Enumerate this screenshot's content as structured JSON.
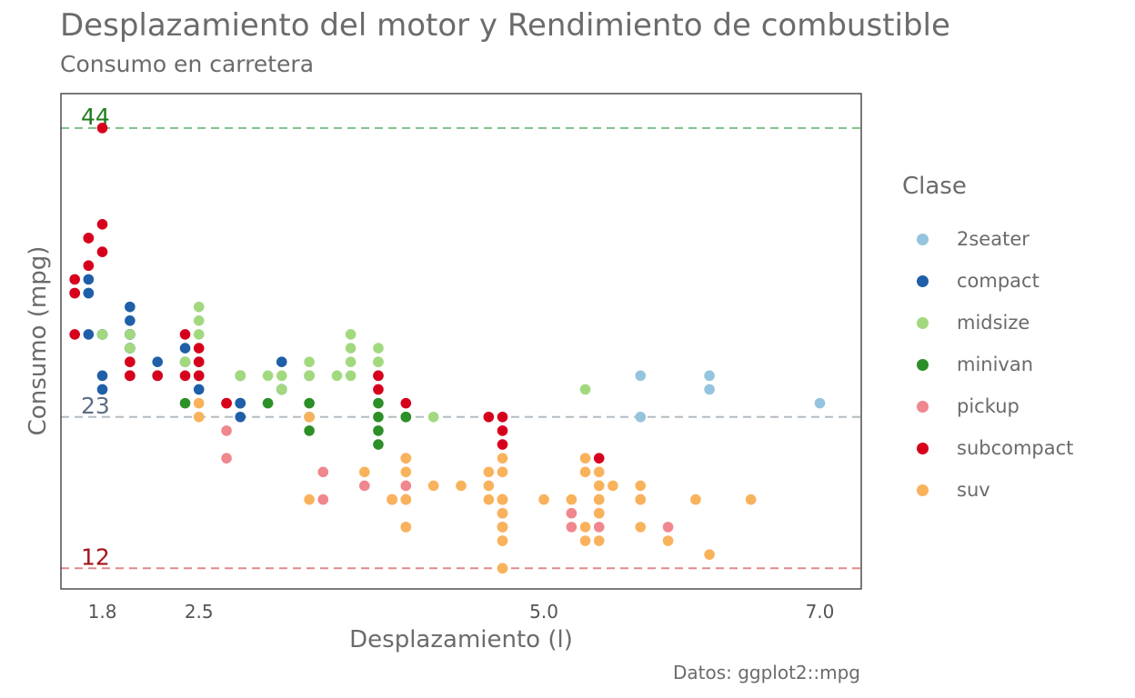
{
  "chart_data": {
    "type": "scatter",
    "title": "Desplazamiento del motor y Rendimiento de combustible",
    "subtitle": "Consumo en carretera",
    "caption": "Datos: ggplot2::mpg",
    "xlabel": "Desplazamiento (l)",
    "ylabel": "Consumo (mpg)",
    "xlim": [
      1.5,
      7.3
    ],
    "ylim": [
      10.5,
      46.5
    ],
    "xticks": [
      1.8,
      2.5,
      5.0,
      7.0
    ],
    "xtick_labels": [
      "1.8",
      "2.5",
      "5.0",
      "7.0"
    ],
    "grid": false,
    "legend": {
      "title": "Clase",
      "position": "right"
    },
    "reference_lines": [
      {
        "value": 44,
        "label": "44",
        "color": "#7fbf85",
        "label_color": "#1e7d1e"
      },
      {
        "value": 23,
        "label": "23",
        "color": "#b3bcc2",
        "label_color": "#5e6e84"
      },
      {
        "value": 12,
        "label": "12",
        "color": "#e08a8a",
        "label_color": "#a3141b"
      }
    ],
    "series": [
      {
        "name": "2seater",
        "color": "#94c4de",
        "points": [
          [
            5.7,
            26
          ],
          [
            5.7,
            23
          ],
          [
            6.2,
            26
          ],
          [
            6.2,
            25
          ],
          [
            7.0,
            24
          ]
        ]
      },
      {
        "name": "compact",
        "color": "#1f5fa8",
        "points": [
          [
            1.8,
            29
          ],
          [
            1.8,
            29
          ],
          [
            2.0,
            31
          ],
          [
            2.0,
            30
          ],
          [
            2.8,
            26
          ],
          [
            2.8,
            26
          ],
          [
            3.1,
            27
          ],
          [
            1.8,
            26
          ],
          [
            1.8,
            25
          ],
          [
            2.0,
            28
          ],
          [
            2.0,
            28
          ],
          [
            2.8,
            24
          ],
          [
            2.8,
            24
          ],
          [
            3.1,
            25
          ],
          [
            3.1,
            25
          ],
          [
            1.7,
            33
          ],
          [
            1.7,
            32
          ],
          [
            1.7,
            32
          ],
          [
            1.7,
            29
          ],
          [
            2.0,
            29
          ],
          [
            2.0,
            26
          ],
          [
            2.2,
            27
          ],
          [
            2.2,
            26
          ],
          [
            2.4,
            28
          ],
          [
            2.4,
            27
          ],
          [
            2.5,
            25
          ],
          [
            2.5,
            27
          ],
          [
            2.5,
            26
          ],
          [
            2.0,
            29
          ],
          [
            2.0,
            28
          ],
          [
            2.0,
            29
          ],
          [
            2.0,
            29
          ],
          [
            2.8,
            24
          ],
          [
            2.8,
            23
          ],
          [
            3.3,
            26
          ]
        ]
      },
      {
        "name": "midsize",
        "color": "#a2d97f",
        "points": [
          [
            2.4,
            27
          ],
          [
            3.0,
            26
          ],
          [
            3.3,
            26
          ],
          [
            3.3,
            27
          ],
          [
            3.8,
            28
          ],
          [
            3.8,
            27
          ],
          [
            3.8,
            26
          ],
          [
            3.5,
            26
          ],
          [
            3.8,
            27
          ],
          [
            3.8,
            26
          ],
          [
            3.6,
            28
          ],
          [
            3.6,
            29
          ],
          [
            3.6,
            27
          ],
          [
            2.5,
            29
          ],
          [
            2.5,
            30
          ],
          [
            2.5,
            31
          ],
          [
            2.8,
            26
          ],
          [
            2.8,
            26
          ],
          [
            3.1,
            26
          ],
          [
            3.1,
            25
          ],
          [
            2.5,
            26
          ],
          [
            3.3,
            26
          ],
          [
            3.6,
            26
          ],
          [
            4.2,
            23
          ],
          [
            5.3,
            25
          ],
          [
            1.8,
            29
          ],
          [
            2.0,
            29
          ],
          [
            2.0,
            28
          ],
          [
            2.0,
            27
          ]
        ]
      },
      {
        "name": "minivan",
        "color": "#2c8f27",
        "points": [
          [
            2.4,
            24
          ],
          [
            3.0,
            24
          ],
          [
            3.3,
            22
          ],
          [
            3.3,
            24
          ],
          [
            3.8,
            23
          ],
          [
            3.8,
            22
          ],
          [
            3.8,
            21
          ],
          [
            4.0,
            23
          ],
          [
            3.3,
            23
          ],
          [
            3.8,
            24
          ],
          [
            4.0,
            23
          ]
        ]
      },
      {
        "name": "pickup",
        "color": "#f0868e",
        "points": [
          [
            2.7,
            20
          ],
          [
            2.7,
            22
          ],
          [
            3.4,
            19
          ],
          [
            3.4,
            17
          ],
          [
            3.7,
            18
          ],
          [
            3.9,
            17
          ],
          [
            3.9,
            17
          ],
          [
            4.7,
            17
          ],
          [
            4.7,
            16
          ],
          [
            4.7,
            15
          ],
          [
            5.2,
            16
          ],
          [
            5.2,
            15
          ],
          [
            4.0,
            20
          ],
          [
            4.0,
            17
          ],
          [
            4.7,
            17
          ],
          [
            4.7,
            15
          ],
          [
            5.7,
            17
          ],
          [
            5.9,
            15
          ],
          [
            5.4,
            16
          ],
          [
            5.4,
            15
          ],
          [
            4.0,
            18
          ]
        ]
      },
      {
        "name": "subcompact",
        "color": "#d7001c",
        "points": [
          [
            3.8,
            26
          ],
          [
            3.8,
            25
          ],
          [
            4.0,
            24
          ],
          [
            4.7,
            23
          ],
          [
            4.7,
            22
          ],
          [
            4.7,
            21
          ],
          [
            5.4,
            20
          ],
          [
            1.8,
            35
          ],
          [
            1.8,
            37
          ],
          [
            1.8,
            44
          ],
          [
            1.6,
            33
          ],
          [
            1.6,
            32
          ],
          [
            1.6,
            32
          ],
          [
            1.6,
            29
          ],
          [
            1.7,
            34
          ],
          [
            1.7,
            36
          ],
          [
            1.7,
            36
          ],
          [
            2.0,
            26
          ],
          [
            2.0,
            27
          ],
          [
            2.2,
            26
          ],
          [
            2.5,
            27
          ],
          [
            2.5,
            28
          ],
          [
            2.7,
            24
          ],
          [
            2.7,
            24
          ],
          [
            2.5,
            26
          ],
          [
            2.0,
            26
          ],
          [
            2.4,
            29
          ],
          [
            2.4,
            26
          ],
          [
            4.6,
            23
          ]
        ]
      },
      {
        "name": "suv",
        "color": "#f9b25c",
        "points": [
          [
            5.3,
            20
          ],
          [
            5.3,
            15
          ],
          [
            5.7,
            17
          ],
          [
            6.5,
            17
          ],
          [
            3.7,
            19
          ],
          [
            4.7,
            17
          ],
          [
            4.7,
            12
          ],
          [
            4.7,
            15
          ],
          [
            4.7,
            17
          ],
          [
            5.2,
            17
          ],
          [
            5.7,
            18
          ],
          [
            5.9,
            14
          ],
          [
            4.7,
            19
          ],
          [
            4.7,
            16
          ],
          [
            5.4,
            19
          ],
          [
            5.4,
            17
          ],
          [
            4.0,
            15
          ],
          [
            4.0,
            19
          ],
          [
            4.6,
            19
          ],
          [
            5.0,
            17
          ],
          [
            4.2,
            18
          ],
          [
            4.4,
            18
          ],
          [
            4.6,
            17
          ],
          [
            5.4,
            18
          ],
          [
            5.4,
            16
          ],
          [
            4.0,
            17
          ],
          [
            4.7,
            12
          ],
          [
            4.7,
            17
          ],
          [
            5.7,
            15
          ],
          [
            6.1,
            17
          ],
          [
            4.0,
            20
          ],
          [
            3.3,
            23
          ],
          [
            3.3,
            17
          ],
          [
            2.5,
            24
          ],
          [
            2.5,
            23
          ],
          [
            4.7,
            14
          ],
          [
            4.7,
            14
          ],
          [
            5.4,
            14
          ],
          [
            5.4,
            17
          ],
          [
            5.4,
            18
          ],
          [
            6.2,
            13
          ],
          [
            5.5,
            18
          ],
          [
            4.7,
            20
          ],
          [
            4.0,
            15
          ],
          [
            3.9,
            17
          ],
          [
            4.7,
            15
          ],
          [
            5.3,
            19
          ],
          [
            5.3,
            14
          ],
          [
            4.6,
            18
          ]
        ]
      }
    ]
  }
}
